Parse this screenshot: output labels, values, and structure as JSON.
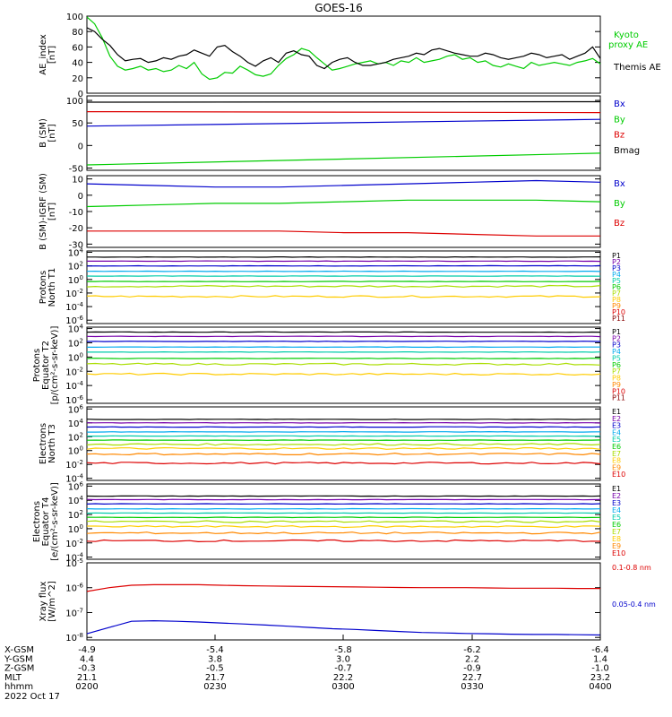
{
  "title": "GOES-16",
  "colors": {
    "black": "#000000",
    "blue": "#0000cc",
    "green": "#00cc00",
    "red": "#dd0000"
  },
  "chart_data": [
    {
      "type": "line",
      "ylabel": [
        "AE_index",
        "[nT]"
      ],
      "yticks": [
        "100",
        "80",
        "60",
        "40",
        "20",
        "0"
      ],
      "ylim": [
        0,
        100
      ],
      "series": [
        {
          "name": "Kyoto proxy AE",
          "legend": [
            "Kyoto",
            "proxy AE"
          ],
          "color": "#00cc00",
          "values": [
            99,
            90,
            72,
            48,
            35,
            30,
            32,
            35,
            30,
            32,
            28,
            30,
            36,
            32,
            40,
            25,
            18,
            20,
            27,
            26,
            35,
            30,
            24,
            22,
            25,
            36,
            45,
            50,
            58,
            55,
            46,
            38,
            30,
            32,
            35,
            38,
            40,
            42,
            38,
            40,
            36,
            42,
            40,
            46,
            40,
            42,
            44,
            48,
            50,
            44,
            46,
            40,
            42,
            36,
            34,
            38,
            35,
            32,
            40,
            36,
            38,
            40,
            38,
            36,
            40,
            42,
            45,
            38
          ]
        },
        {
          "name": "Themis AE",
          "legend": [
            "Themis AE"
          ],
          "color": "#000000",
          "values": [
            85,
            80,
            70,
            62,
            50,
            42,
            44,
            45,
            40,
            42,
            46,
            44,
            48,
            50,
            56,
            52,
            48,
            60,
            62,
            54,
            48,
            40,
            35,
            42,
            46,
            40,
            52,
            55,
            50,
            48,
            36,
            32,
            40,
            44,
            46,
            40,
            36,
            36,
            38,
            40,
            44,
            46,
            48,
            52,
            50,
            56,
            58,
            55,
            52,
            50,
            48,
            48,
            52,
            50,
            46,
            44,
            46,
            48,
            52,
            50,
            46,
            48,
            50,
            44,
            48,
            52,
            60,
            45
          ]
        }
      ]
    },
    {
      "type": "line",
      "ylabel": [
        "B (SM)",
        "[nT]"
      ],
      "yticks": [
        "100",
        "50",
        "0",
        "-50"
      ],
      "ylim": [
        -55,
        110
      ],
      "series": [
        {
          "name": "Bx",
          "legend": [
            "Bx"
          ],
          "color": "#0000cc",
          "values": [
            43,
            58
          ]
        },
        {
          "name": "By",
          "legend": [
            "By"
          ],
          "color": "#00cc00",
          "values": [
            -43,
            -17
          ]
        },
        {
          "name": "Bz",
          "legend": [
            "Bz"
          ],
          "color": "#dd0000",
          "values": [
            75,
            73
          ]
        },
        {
          "name": "Bmag",
          "legend": [
            "Bmag"
          ],
          "color": "#000000",
          "values": [
            96,
            97
          ]
        }
      ]
    },
    {
      "type": "line",
      "ylabel": [
        "B (SM)-IGRF (SM)",
        "[nT]"
      ],
      "yticks": [
        "10",
        "0",
        "-10",
        "-20",
        "-30"
      ],
      "ylim": [
        -32,
        12
      ],
      "series": [
        {
          "name": "Bx",
          "legend": [
            "Bx"
          ],
          "color": "#0000cc",
          "values": [
            7,
            6,
            5,
            5,
            6,
            7,
            8,
            9,
            8
          ]
        },
        {
          "name": "By",
          "legend": [
            "By"
          ],
          "color": "#00cc00",
          "values": [
            -7,
            -6,
            -5,
            -5,
            -4,
            -3,
            -3,
            -3,
            -4
          ]
        },
        {
          "name": "Bz",
          "legend": [
            "Bz"
          ],
          "color": "#dd0000",
          "values": [
            -22,
            -22,
            -22,
            -22,
            -23,
            -23,
            -24,
            -25,
            -25
          ]
        }
      ]
    },
    {
      "type": "line",
      "ylabel": [
        "Protons",
        "North T1"
      ],
      "yticks": [
        "10^4",
        "10^2",
        "10^0",
        "10^-2",
        "10^-4",
        "10^-6"
      ],
      "ylog": true,
      "ylim": [
        -6.5,
        4.2
      ],
      "series": [
        {
          "name": "P1",
          "color": "#000000",
          "levels": [
            3.3
          ]
        },
        {
          "name": "P2",
          "color": "#7700aa",
          "levels": [
            2.7
          ]
        },
        {
          "name": "P3",
          "color": "#0000cc",
          "levels": [
            2.0
          ]
        },
        {
          "name": "P4",
          "color": "#00aaee",
          "levels": [
            1.2
          ]
        },
        {
          "name": "P5",
          "color": "#00ccaa",
          "levels": [
            0.5
          ]
        },
        {
          "name": "P6",
          "color": "#00cc00",
          "levels": [
            -0.3
          ]
        },
        {
          "name": "P7",
          "color": "#aadd00",
          "levels": [
            -1.0
          ]
        },
        {
          "name": "P8",
          "color": "#ffcc00",
          "levels": [
            -2.5
          ]
        },
        {
          "name": "P9",
          "color": "#ff8800"
        },
        {
          "name": "P10",
          "color": "#dd0000"
        },
        {
          "name": "P11",
          "color": "#880000"
        }
      ]
    },
    {
      "type": "line",
      "ylabel": [
        "Protons",
        "Equator T2",
        "[p/(cm²-s-sr-keV)]"
      ],
      "yticks": [
        "10^4",
        "10^2",
        "10^0",
        "10^-2",
        "10^-4",
        "10^-6"
      ],
      "ylog": true,
      "ylim": [
        -6.5,
        4.2
      ],
      "series": [
        {
          "name": "P1",
          "color": "#000000",
          "levels": [
            3.5
          ]
        },
        {
          "name": "P2",
          "color": "#7700aa",
          "levels": [
            2.9
          ]
        },
        {
          "name": "P3",
          "color": "#0000cc",
          "levels": [
            2.2
          ]
        },
        {
          "name": "P4",
          "color": "#00aaee",
          "levels": [
            1.4
          ]
        },
        {
          "name": "P5",
          "color": "#00ccaa",
          "levels": [
            0.7
          ]
        },
        {
          "name": "P6",
          "color": "#00cc00",
          "levels": [
            -0.2
          ]
        },
        {
          "name": "P7",
          "color": "#aadd00",
          "levels": [
            -1.0
          ]
        },
        {
          "name": "P8",
          "color": "#ffcc00",
          "levels": [
            -2.4
          ]
        },
        {
          "name": "P9",
          "color": "#ff8800"
        },
        {
          "name": "P10",
          "color": "#dd0000"
        },
        {
          "name": "P11",
          "color": "#880000"
        }
      ]
    },
    {
      "type": "line",
      "ylabel": [
        "Electrons",
        "North T3"
      ],
      "yticks": [
        "10^6",
        "10^4",
        "10^2",
        "10^0",
        "10^-2",
        "10^-4"
      ],
      "ylog": true,
      "ylim": [
        -4.3,
        6.3
      ],
      "series": [
        {
          "name": "E1",
          "color": "#000000",
          "levels": [
            4.5
          ]
        },
        {
          "name": "E2",
          "color": "#7700aa",
          "levels": [
            4.0
          ]
        },
        {
          "name": "E3",
          "color": "#0000cc",
          "levels": [
            3.4
          ]
        },
        {
          "name": "E4",
          "color": "#00aaee",
          "levels": [
            2.7
          ]
        },
        {
          "name": "E5",
          "color": "#00ccaa",
          "levels": [
            2.1
          ]
        },
        {
          "name": "E6",
          "color": "#00cc00",
          "levels": [
            1.5
          ]
        },
        {
          "name": "E7",
          "color": "#aadd00",
          "levels": [
            0.9
          ]
        },
        {
          "name": "E8",
          "color": "#ffcc00",
          "levels": [
            0.3
          ]
        },
        {
          "name": "E9",
          "color": "#ff8800",
          "levels": [
            -0.5
          ]
        },
        {
          "name": "E10",
          "color": "#dd0000",
          "levels": [
            -1.8
          ]
        }
      ]
    },
    {
      "type": "line",
      "ylabel": [
        "Electrons",
        "Equator T4",
        "[e/(cm²-s-sr-keV)]"
      ],
      "yticks": [
        "10^6",
        "10^4",
        "10^2",
        "10^0",
        "10^-2",
        "10^-4"
      ],
      "ylog": true,
      "ylim": [
        -4.3,
        6.3
      ],
      "series": [
        {
          "name": "E1",
          "color": "#000000",
          "levels": [
            4.6
          ]
        },
        {
          "name": "E2",
          "color": "#7700aa",
          "levels": [
            4.1
          ]
        },
        {
          "name": "E3",
          "color": "#0000cc",
          "levels": [
            3.5
          ]
        },
        {
          "name": "E4",
          "color": "#00aaee",
          "levels": [
            2.8
          ]
        },
        {
          "name": "E5",
          "color": "#00ccaa",
          "levels": [
            2.2
          ]
        },
        {
          "name": "E6",
          "color": "#00cc00",
          "levels": [
            1.6
          ]
        },
        {
          "name": "E7",
          "color": "#aadd00",
          "levels": [
            1.0
          ]
        },
        {
          "name": "E8",
          "color": "#ffcc00",
          "levels": [
            0.3
          ]
        },
        {
          "name": "E9",
          "color": "#ff8800",
          "levels": [
            -0.6
          ]
        },
        {
          "name": "E10",
          "color": "#dd0000",
          "levels": [
            -1.7
          ]
        }
      ]
    },
    {
      "type": "line",
      "ylabel": [
        "Xray flux",
        "[W/m^2]"
      ],
      "yticks": [
        "10^-5",
        "10^-6",
        "10^-7",
        "10^-8"
      ],
      "ylog": true,
      "ylim": [
        -8.1,
        -5.0
      ],
      "series": [
        {
          "name": "0.1-0.8 nm",
          "legend": [
            "0.1-0.8 nm"
          ],
          "color": "#dd0000",
          "values": [
            -6.15,
            -6.0,
            -5.9,
            -5.88,
            -5.88,
            -5.88,
            -5.9,
            -5.92,
            -5.93,
            -5.94,
            -5.95,
            -5.96,
            -5.97,
            -5.98,
            -5.99,
            -6.0,
            -6.0,
            -6.0,
            -6.01,
            -6.02,
            -6.02,
            -6.02,
            -6.03,
            -6.03
          ]
        },
        {
          "name": "0.05-0.4 nm",
          "legend": [
            "0.05-0.4 nm"
          ],
          "color": "#0000cc",
          "values": [
            -7.85,
            -7.6,
            -7.35,
            -7.33,
            -7.35,
            -7.38,
            -7.42,
            -7.46,
            -7.5,
            -7.55,
            -7.6,
            -7.65,
            -7.68,
            -7.72,
            -7.76,
            -7.8,
            -7.82,
            -7.84,
            -7.85,
            -7.87,
            -7.88,
            -7.88,
            -7.89,
            -7.9
          ]
        }
      ]
    }
  ],
  "xaxis": {
    "rows": [
      {
        "label": "X-GSM",
        "values": [
          "-4.9",
          "-5.4",
          "-5.8",
          "-6.2",
          "-6.4"
        ]
      },
      {
        "label": "Y-GSM",
        "values": [
          "4.4",
          "3.8",
          "3.0",
          "2.2",
          "1.4"
        ]
      },
      {
        "label": "Z-GSM",
        "values": [
          "-0.3",
          "-0.5",
          "-0.7",
          "-0.9",
          "-1.0"
        ]
      },
      {
        "label": "MLT",
        "values": [
          "21.1",
          "21.7",
          "22.2",
          "22.7",
          "23.2"
        ]
      },
      {
        "label": "hhmm",
        "values": [
          "0200",
          "0230",
          "0300",
          "0330",
          "0400"
        ]
      }
    ],
    "date": "2022 Oct 17"
  }
}
